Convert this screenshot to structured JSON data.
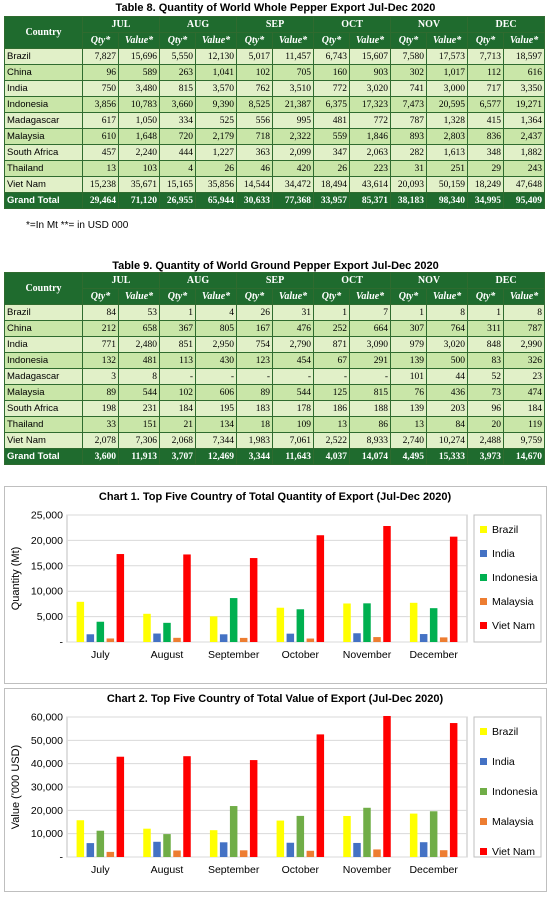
{
  "table8": {
    "title": "Table 8. Quantity of World Whole Pepper Export Jul-Dec 2020",
    "country_header": "Country",
    "months": [
      "JUL",
      "AUG",
      "SEP",
      "OCT",
      "NOV",
      "DEC"
    ],
    "qty_label": "Qty*",
    "value_label": "Value*",
    "rows": [
      [
        "Brazil",
        "7,827",
        "15,696",
        "5,550",
        "12,130",
        "5,017",
        "11,457",
        "6,743",
        "15,607",
        "7,580",
        "17,573",
        "7,713",
        "18,597"
      ],
      [
        "China",
        "96",
        "589",
        "263",
        "1,041",
        "102",
        "705",
        "160",
        "903",
        "302",
        "1,017",
        "112",
        "616"
      ],
      [
        "India",
        "750",
        "3,480",
        "815",
        "3,570",
        "762",
        "3,510",
        "772",
        "3,020",
        "741",
        "3,000",
        "717",
        "3,350"
      ],
      [
        "Indonesia",
        "3,856",
        "10,783",
        "3,660",
        "9,390",
        "8,525",
        "21,387",
        "6,375",
        "17,323",
        "7,473",
        "20,595",
        "6,577",
        "19,271"
      ],
      [
        "Madagascar",
        "617",
        "1,050",
        "334",
        "525",
        "556",
        "995",
        "481",
        "772",
        "787",
        "1,328",
        "415",
        "1,364"
      ],
      [
        "Malaysia",
        "610",
        "1,648",
        "720",
        "2,179",
        "718",
        "2,322",
        "559",
        "1,846",
        "893",
        "2,803",
        "836",
        "2,437"
      ],
      [
        "South Africa",
        "457",
        "2,240",
        "444",
        "1,227",
        "363",
        "2,099",
        "347",
        "2,063",
        "282",
        "1,613",
        "348",
        "1,882"
      ],
      [
        "Thailand",
        "13",
        "103",
        "4",
        "26",
        "46",
        "420",
        "26",
        "223",
        "31",
        "251",
        "29",
        "243"
      ],
      [
        "Viet Nam",
        "15,238",
        "35,671",
        "15,165",
        "35,856",
        "14,544",
        "34,472",
        "18,494",
        "43,614",
        "20,093",
        "50,159",
        "18,249",
        "47,648"
      ]
    ],
    "grand_total": [
      "Grand Total",
      "29,464",
      "71,120",
      "26,955",
      "65,944",
      "30,633",
      "77,368",
      "33,957",
      "85,371",
      "38,183",
      "98,340",
      "34,995",
      "95,409"
    ],
    "note": "*=In Mt **= in USD 000"
  },
  "table9": {
    "title": "Table 9. Quantity of World Ground Pepper Export Jul-Dec 2020",
    "country_header": "Country",
    "months": [
      "JUL",
      "AUG",
      "SEP",
      "OCT",
      "NOV",
      "DEC"
    ],
    "qty_label": "Qty*",
    "value_label": "Value*",
    "rows": [
      [
        "Brazil",
        "84",
        "53",
        "1",
        "4",
        "26",
        "31",
        "1",
        "7",
        "1",
        "8",
        "1",
        "8"
      ],
      [
        "China",
        "212",
        "658",
        "367",
        "805",
        "167",
        "476",
        "252",
        "664",
        "307",
        "764",
        "311",
        "787"
      ],
      [
        "India",
        "771",
        "2,480",
        "851",
        "2,950",
        "754",
        "2,790",
        "871",
        "3,090",
        "979",
        "3,020",
        "848",
        "2,990"
      ],
      [
        "Indonesia",
        "132",
        "481",
        "113",
        "430",
        "123",
        "454",
        "67",
        "291",
        "139",
        "500",
        "83",
        "326"
      ],
      [
        "Madagascar",
        "3",
        "8",
        "-",
        "-",
        "-",
        "-",
        "-",
        "-",
        "101",
        "44",
        "52",
        "23"
      ],
      [
        "Malaysia",
        "89",
        "544",
        "102",
        "606",
        "89",
        "544",
        "125",
        "815",
        "76",
        "436",
        "73",
        "474"
      ],
      [
        "South Africa",
        "198",
        "231",
        "184",
        "195",
        "183",
        "178",
        "186",
        "188",
        "139",
        "203",
        "96",
        "184"
      ],
      [
        "Thailand",
        "33",
        "151",
        "21",
        "134",
        "18",
        "109",
        "13",
        "86",
        "13",
        "84",
        "20",
        "119"
      ],
      [
        "Viet Nam",
        "2,078",
        "7,306",
        "2,068",
        "7,344",
        "1,983",
        "7,061",
        "2,522",
        "8,933",
        "2,740",
        "10,274",
        "2,488",
        "9,759"
      ]
    ],
    "grand_total": [
      "Grand Total",
      "3,600",
      "11,913",
      "3,707",
      "12,469",
      "3,344",
      "11,643",
      "4,037",
      "14,074",
      "4,495",
      "15,333",
      "3,973",
      "14,670"
    ]
  },
  "chart_data": [
    {
      "type": "bar",
      "title": "Chart 1. Top Five Country of Total Quantity of Export (Jul-Dec 2020)",
      "ylabel": "Quantity (Mt)",
      "xlabel": "",
      "categories": [
        "July",
        "August",
        "September",
        "October",
        "November",
        "December"
      ],
      "ylim": [
        0,
        25000
      ],
      "yticks": [
        "-",
        "5,000",
        "10,000",
        "15,000",
        "20,000",
        "25,000"
      ],
      "grid": true,
      "legend": "right",
      "series": [
        {
          "name": "Brazil",
          "color": "#ffff00",
          "values": [
            7911,
            5551,
            5043,
            6744,
            7581,
            7714
          ]
        },
        {
          "name": "India",
          "color": "#4472c4",
          "values": [
            1521,
            1666,
            1516,
            1643,
            1720,
            1565
          ]
        },
        {
          "name": "Indonesia",
          "color": "#00b050",
          "values": [
            3988,
            3773,
            8648,
            6442,
            7612,
            6660
          ]
        },
        {
          "name": "Malaysia",
          "color": "#ed7d31",
          "values": [
            699,
            822,
            807,
            684,
            969,
            909
          ]
        },
        {
          "name": "Viet Nam",
          "color": "#ff0000",
          "values": [
            17316,
            17233,
            16527,
            21016,
            22833,
            20737
          ]
        }
      ]
    },
    {
      "type": "bar",
      "title": "Chart 2. Top Five Country of Total Value of Export (Jul-Dec 2020)",
      "ylabel": "Value ('000 USD)",
      "xlabel": "",
      "categories": [
        "July",
        "August",
        "September",
        "October",
        "November",
        "December"
      ],
      "ylim": [
        0,
        60000
      ],
      "yticks": [
        "-",
        "10,000",
        "20,000",
        "30,000",
        "40,000",
        "50,000",
        "60,000"
      ],
      "grid": true,
      "legend": "right",
      "series": [
        {
          "name": "Brazil",
          "color": "#ffff00",
          "values": [
            15749,
            12134,
            11488,
            15614,
            17581,
            18605
          ]
        },
        {
          "name": "India",
          "color": "#4472c4",
          "values": [
            5960,
            6520,
            6300,
            6110,
            6020,
            6340
          ]
        },
        {
          "name": "Indonesia",
          "color": "#70ad47",
          "values": [
            11264,
            9820,
            21841,
            17614,
            21095,
            19597
          ]
        },
        {
          "name": "Malaysia",
          "color": "#ed7d31",
          "values": [
            2192,
            2785,
            2866,
            2661,
            3239,
            2911
          ]
        },
        {
          "name": "Viet Nam",
          "color": "#ff0000",
          "values": [
            42977,
            43200,
            41533,
            52547,
            60433,
            57407
          ]
        }
      ]
    }
  ]
}
